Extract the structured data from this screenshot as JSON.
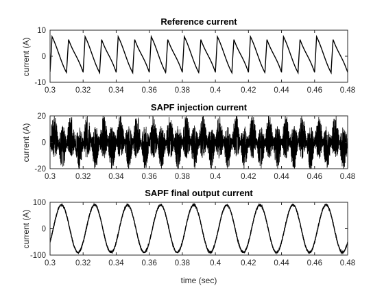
{
  "chart_data": [
    {
      "type": "line",
      "title": "Reference current",
      "ylabel": "current (A)",
      "xlabel": "",
      "xlim": [
        0.3,
        0.48
      ],
      "ylim": [
        -10,
        10
      ],
      "xticks": [
        0.3,
        0.32,
        0.34,
        0.36,
        0.38,
        0.4,
        0.42,
        0.44,
        0.46,
        0.48
      ],
      "xtick_labels": [
        "0.3",
        "0.32",
        "0.34",
        "0.36",
        "0.38",
        "0.4",
        "0.42",
        "0.44",
        "0.46",
        "0.48"
      ],
      "yticks": [
        -10,
        0,
        10
      ],
      "ytick_labels": [
        "-10",
        "0",
        "10"
      ],
      "grid": false,
      "series": [
        {
          "signal": "distorted periodic sawtooth-like current",
          "fundamental_hz": 50,
          "amplitude_a": 8.3,
          "color": "#000000"
        }
      ]
    },
    {
      "type": "line",
      "title": "SAPF injection current",
      "ylabel": "current (A)",
      "xlabel": "",
      "xlim": [
        0.3,
        0.48
      ],
      "ylim": [
        -20,
        20
      ],
      "xticks": [
        0.3,
        0.32,
        0.34,
        0.36,
        0.38,
        0.4,
        0.42,
        0.44,
        0.46,
        0.48
      ],
      "xtick_labels": [
        "0.3",
        "0.32",
        "0.34",
        "0.36",
        "0.38",
        "0.4",
        "0.42",
        "0.44",
        "0.46",
        "0.48"
      ],
      "yticks": [
        -20,
        0,
        20
      ],
      "ytick_labels": [
        "-20",
        "0",
        "20"
      ],
      "grid": false,
      "series": [
        {
          "signal": "switching-ripple injection current",
          "fundamental_hz": 50,
          "envelope_peak_a": 17,
          "color": "#000000"
        }
      ]
    },
    {
      "type": "line",
      "title": "SAPF final output current",
      "ylabel": "current (A)",
      "xlabel": "time (sec)",
      "xlim": [
        0.3,
        0.48
      ],
      "ylim": [
        -100,
        100
      ],
      "xticks": [
        0.3,
        0.32,
        0.34,
        0.36,
        0.38,
        0.4,
        0.42,
        0.44,
        0.46,
        0.48
      ],
      "xtick_labels": [
        "0.3",
        "0.32",
        "0.34",
        "0.36",
        "0.38",
        "0.4",
        "0.42",
        "0.44",
        "0.46",
        "0.48"
      ],
      "yticks": [
        -100,
        0,
        100
      ],
      "ytick_labels": [
        "-100",
        "0",
        "100"
      ],
      "grid": false,
      "series": [
        {
          "signal": "sinusoidal output current",
          "fundamental_hz": 50,
          "amplitude_a": 90,
          "phase_rad": -0.6,
          "color": "#000000"
        }
      ]
    }
  ]
}
